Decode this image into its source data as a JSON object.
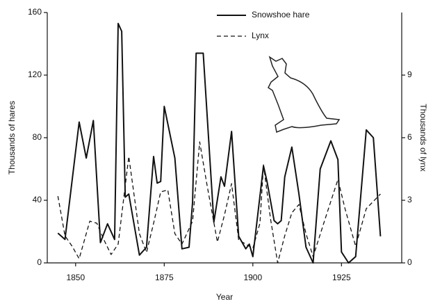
{
  "chart_data": {
    "type": "line",
    "xlabel": "Year",
    "ylabel": "Thousands of hares",
    "y2label": "Thousands of lynx",
    "xlim": [
      1842,
      1942
    ],
    "xticks": [
      1850,
      1875,
      1900,
      1925
    ],
    "ylim": [
      0,
      160
    ],
    "yticks": [
      0,
      40,
      80,
      120,
      160
    ],
    "y2lim": [
      0,
      12
    ],
    "y2ticks": [
      0,
      3,
      6,
      9
    ],
    "legend": "top",
    "series": [
      {
        "name": "Snowshoe hare",
        "color": "#111111",
        "dash": "solid",
        "axis": "y",
        "x": [
          1845,
          1847,
          1851,
          1853,
          1855,
          1857,
          1859,
          1861,
          1862,
          1863,
          1864,
          1865,
          1868,
          1870,
          1872,
          1873,
          1874,
          1875,
          1878,
          1880,
          1882,
          1883,
          1884,
          1886,
          1889,
          1891,
          1892,
          1894,
          1896,
          1898,
          1899,
          1900,
          1903,
          1904,
          1906,
          1907,
          1908,
          1909,
          1911,
          1913,
          1915,
          1917,
          1919,
          1922,
          1924,
          1925,
          1927,
          1929,
          1932,
          1934,
          1936
        ],
        "values": [
          19,
          15,
          90,
          67,
          91,
          13,
          25,
          15,
          153,
          148,
          42,
          44,
          5,
          10,
          68,
          51,
          52,
          100,
          67,
          9,
          10,
          39,
          134,
          134,
          26,
          55,
          49,
          84,
          17,
          9,
          12,
          4,
          62,
          52,
          27,
          25,
          27,
          55,
          74,
          44,
          10,
          0,
          60,
          78,
          66,
          7,
          0,
          4,
          85,
          80,
          17
        ]
      },
      {
        "name": "Lynx",
        "color": "#111111",
        "dash": "dashed",
        "axis": "y2",
        "x": [
          1845,
          1847,
          1849,
          1851,
          1854,
          1856,
          1858,
          1860,
          1862,
          1865,
          1868,
          1870,
          1872,
          1874,
          1876,
          1878,
          1880,
          1883,
          1885,
          1887,
          1890,
          1892,
          1894,
          1896,
          1898,
          1900,
          1902,
          1903,
          1905,
          1907,
          1909,
          1911,
          1913,
          1915,
          1917,
          1920,
          1924,
          1926,
          1929,
          1932,
          1936
        ],
        "values": [
          3.2,
          1.3,
          0.8,
          0.2,
          2.0,
          1.9,
          1.1,
          0.4,
          0.9,
          5.1,
          1.4,
          0.5,
          1.9,
          3.4,
          3.5,
          1.4,
          0.9,
          2.0,
          5.8,
          3.8,
          1.0,
          2.3,
          3.8,
          1.1,
          0.9,
          0.7,
          1.9,
          4.7,
          2.1,
          0,
          1.3,
          2.4,
          2.8,
          1.4,
          0.3,
          1.9,
          4.0,
          2.6,
          0.8,
          2.6,
          3.3
        ]
      }
    ]
  }
}
